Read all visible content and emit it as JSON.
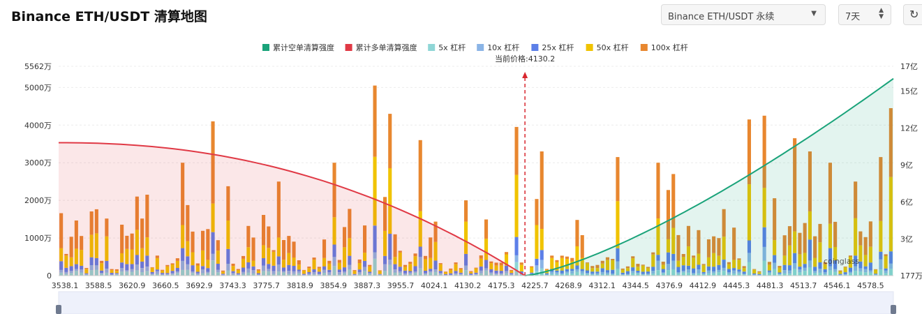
{
  "header": {
    "title": "Binance ETH/USDT 清算地图",
    "symbol_select": "Binance ETH/USDT 永续",
    "range_select": "7天"
  },
  "chart_data": {
    "type": "bar",
    "current_price_label": "当前价格:4130.2",
    "current_price": 4130.2,
    "x_tick_labels": [
      "3538.1",
      "3588.5",
      "3620.9",
      "3660.5",
      "3692.9",
      "3743.3",
      "3775.7",
      "3818.9",
      "3854.9",
      "3887.3",
      "3955.7",
      "4024.1",
      "4130.2",
      "4175.3",
      "4225.7",
      "4268.9",
      "4312.1",
      "4344.5",
      "4376.9",
      "4412.9",
      "4445.3",
      "4481.3",
      "4513.7",
      "4546.1",
      "4578.5"
    ],
    "left_axis": {
      "ticks": [
        0,
        10000000,
        20000000,
        30000000,
        40000000,
        50000000,
        55620000
      ],
      "labels": [
        "0",
        "1000万",
        "2000万",
        "3000万",
        "4000万",
        "5000万",
        "5562万"
      ],
      "max": 55620000
    },
    "right_axis": {
      "ticks": [
        1770000,
        300000000,
        600000000,
        900000000,
        1200000000,
        1500000000,
        1700000000
      ],
      "labels": [
        "177万",
        "3亿",
        "6亿",
        "9亿",
        "12亿",
        "15亿",
        "17亿"
      ],
      "min": 1770000,
      "max": 1700000000
    },
    "legend": [
      {
        "name": "累计空单清算强度",
        "color": "#1aa37a"
      },
      {
        "name": "累计多单清算强度",
        "color": "#e03945"
      },
      {
        "name": "5x 杠杆",
        "color": "#8fd6d6"
      },
      {
        "name": "10x 杠杆",
        "color": "#8ab4e6"
      },
      {
        "name": "25x 杠杆",
        "color": "#5c7fe8"
      },
      {
        "name": "50x 杠杆",
        "color": "#f0c300"
      },
      {
        "name": "100x 杠杆",
        "color": "#e8872f"
      }
    ],
    "bar_count": 165,
    "bar_x_range": [
      3538.1,
      4598.0
    ],
    "stack_order": [
      "5x",
      "10x",
      "25x",
      "50x",
      "100x"
    ],
    "short_curve": {
      "color": "#1aa37a",
      "x_range": [
        4130.2,
        4598.0
      ],
      "y_start": 1770000,
      "y_end": 1600000000
    },
    "long_curve": {
      "color": "#e03945",
      "x_range": [
        3538.1,
        4130.2
      ],
      "y_start": 1080000000,
      "y_end": 1770000
    },
    "grid": true,
    "watermark": "coinglass"
  }
}
